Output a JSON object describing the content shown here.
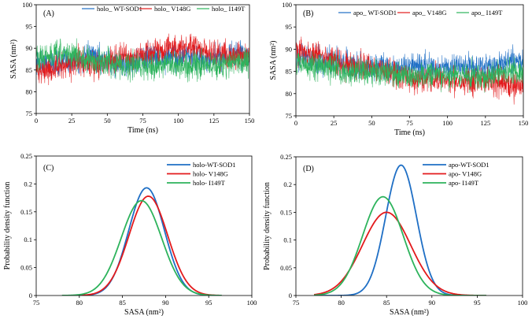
{
  "chart_data": [
    {
      "id": "A",
      "type": "line",
      "panel_label": "(A)",
      "xlabel": "Time (ns)",
      "ylabel": "SASA (nm²)",
      "xlim": [
        0,
        150
      ],
      "ylim": [
        75,
        100
      ],
      "xticks": [
        0,
        25,
        50,
        75,
        100,
        125,
        150
      ],
      "yticks": [
        75,
        80,
        85,
        90,
        95,
        100
      ],
      "legend_position": "top",
      "series": [
        {
          "name": "holo_ WT-SOD1",
          "color": "#1f6fc5",
          "x": [
            0,
            10,
            20,
            30,
            40,
            50,
            60,
            70,
            80,
            90,
            100,
            110,
            120,
            130,
            140,
            150
          ],
          "y": [
            87,
            86,
            87,
            87,
            88,
            87,
            86,
            87,
            88,
            88,
            88,
            88,
            87,
            88,
            89,
            88
          ],
          "spread": 3.5
        },
        {
          "name": "holo_ V148G",
          "color": "#e31a1c",
          "x": [
            0,
            10,
            20,
            30,
            40,
            50,
            60,
            70,
            80,
            90,
            100,
            110,
            120,
            130,
            140,
            150
          ],
          "y": [
            85,
            85,
            86,
            87,
            86,
            87,
            88,
            88,
            89,
            90,
            90,
            90,
            89,
            89,
            88,
            88
          ],
          "spread": 3.5
        },
        {
          "name": "holo_ I149T",
          "color": "#2db35c",
          "x": [
            0,
            10,
            20,
            30,
            40,
            50,
            60,
            70,
            80,
            90,
            100,
            110,
            120,
            130,
            140,
            150
          ],
          "y": [
            88,
            88,
            89,
            88,
            87,
            87,
            86,
            86,
            86,
            86,
            86,
            86,
            86,
            86,
            87,
            87
          ],
          "spread": 3.5
        }
      ]
    },
    {
      "id": "B",
      "type": "line",
      "panel_label": "(B)",
      "xlabel": "Time (ns)",
      "ylabel": "SASA (nm²)",
      "xlim": [
        0,
        150
      ],
      "ylim": [
        75,
        100
      ],
      "xticks": [
        0,
        25,
        50,
        75,
        100,
        125,
        150
      ],
      "yticks": [
        75,
        80,
        85,
        90,
        95,
        100
      ],
      "legend_position": "top",
      "series": [
        {
          "name": "apo_ WT-SOD1",
          "color": "#1f6fc5",
          "x": [
            0,
            10,
            20,
            30,
            40,
            50,
            60,
            70,
            80,
            90,
            100,
            110,
            120,
            130,
            140,
            150
          ],
          "y": [
            88,
            88,
            87,
            87,
            86,
            86,
            86,
            86,
            86,
            86,
            86,
            86,
            86,
            86,
            87,
            87
          ],
          "spread": 3.5
        },
        {
          "name": "apo_ V148G",
          "color": "#e31a1c",
          "x": [
            0,
            10,
            20,
            30,
            40,
            50,
            60,
            70,
            80,
            90,
            100,
            110,
            120,
            130,
            140,
            150
          ],
          "y": [
            90,
            89,
            88,
            87,
            86,
            86,
            85,
            84,
            83,
            83,
            83,
            83,
            83,
            83,
            82,
            82
          ],
          "spread": 3.5
        },
        {
          "name": "apo_ I149T",
          "color": "#2db35c",
          "x": [
            0,
            10,
            20,
            30,
            40,
            50,
            60,
            70,
            80,
            90,
            100,
            110,
            120,
            130,
            140,
            150
          ],
          "y": [
            87,
            86,
            86,
            85,
            85,
            85,
            85,
            84,
            84,
            84,
            84,
            84,
            84,
            84,
            85,
            85
          ],
          "spread": 3.5
        }
      ]
    },
    {
      "id": "C",
      "type": "line",
      "panel_label": "(C)",
      "xlabel": "SASA (nm²)",
      "ylabel": "Probability density function",
      "xlim": [
        75,
        100
      ],
      "ylim": [
        0,
        0.25
      ],
      "xticks": [
        75,
        80,
        85,
        90,
        95,
        100
      ],
      "yticks": [
        0,
        0.05,
        0.1,
        0.15,
        0.2,
        0.25
      ],
      "ytick_labels": [
        "0",
        "0.05",
        "0.1",
        "0.15",
        "0.2",
        "0.25"
      ],
      "legend_position": "top-right",
      "x_range": [
        78,
        96.5
      ],
      "series": [
        {
          "name": "holo-WT-SOD1",
          "color": "#1f6fc5",
          "mean": 87.8,
          "peak": 0.193
        },
        {
          "name": "holo- V148G",
          "color": "#e31a1c",
          "mean": 88.0,
          "peak": 0.178
        },
        {
          "name": "holo- I149T",
          "color": "#2db35c",
          "mean": 87.2,
          "peak": 0.17
        }
      ]
    },
    {
      "id": "D",
      "type": "line",
      "panel_label": "(D)",
      "xlabel": "SASA (nm²)",
      "ylabel": "Probability density function",
      "xlim": [
        75,
        100
      ],
      "ylim": [
        0,
        0.25
      ],
      "xticks": [
        75,
        80,
        85,
        90,
        95,
        100
      ],
      "yticks": [
        0,
        0.05,
        0.1,
        0.15,
        0.2,
        0.25
      ],
      "ytick_labels": [
        "0",
        "0.05",
        "0.1",
        "0.15",
        "0.2",
        "0.25"
      ],
      "legend_position": "top-right",
      "x_range": [
        77,
        96
      ],
      "series": [
        {
          "name": "apo-WT-SOD1",
          "color": "#1f6fc5",
          "mean": 86.6,
          "peak": 0.235
        },
        {
          "name": "apo- V148G",
          "color": "#e31a1c",
          "mean": 85.0,
          "peak": 0.15
        },
        {
          "name": "apo- I149T",
          "color": "#2db35c",
          "mean": 84.6,
          "peak": 0.178
        }
      ]
    }
  ]
}
